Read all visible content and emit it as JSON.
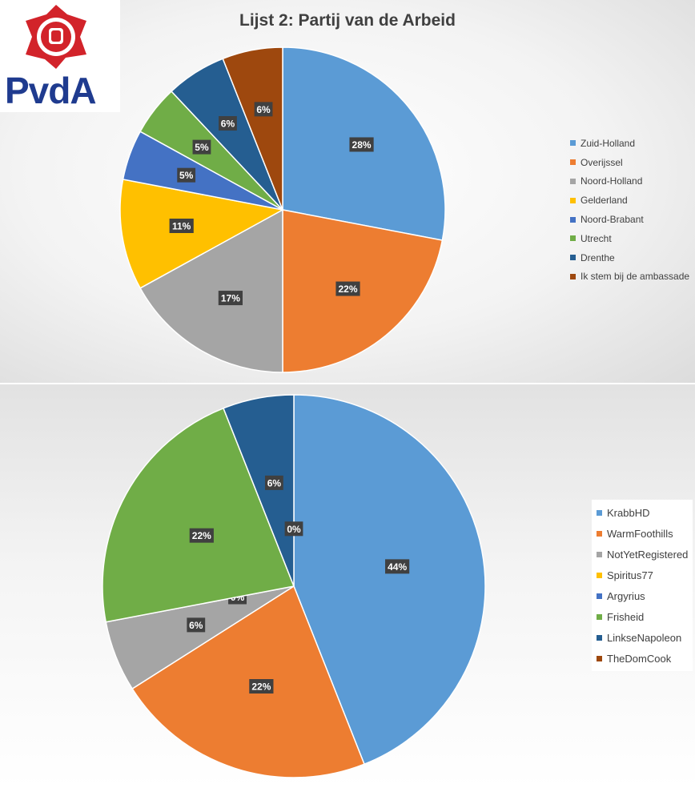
{
  "logo": {
    "text": "PvdA",
    "colors": {
      "rose": "#d2232a",
      "text": "#1f3b8f"
    }
  },
  "chart_data": [
    {
      "type": "pie",
      "title": "Lijst 2: Partij van de Arbeid",
      "categories": [
        "Zuid-Holland",
        "Overijssel",
        "Noord-Holland",
        "Gelderland",
        "Noord-Brabant",
        "Utrecht",
        "Drenthe",
        "Ik stem bij de ambassade"
      ],
      "values": [
        28,
        22,
        17,
        11,
        5,
        5,
        6,
        6
      ],
      "labels": [
        "28%",
        "22%",
        "17%",
        "11%",
        "5%",
        "5%",
        "6%",
        "6%"
      ],
      "colors": [
        "#5b9bd5",
        "#ed7d31",
        "#a5a5a5",
        "#ffc000",
        "#4472c4",
        "#70ad47",
        "#255e91",
        "#9e480e"
      ],
      "legend_position": "right"
    },
    {
      "type": "pie",
      "title": "",
      "categories": [
        "KrabbHD",
        "WarmFoothills",
        "NotYetRegistered",
        "Spiritus77",
        "Argyrius",
        "Frisheid",
        "LinkseNapoleon",
        "TheDomCook"
      ],
      "values": [
        44,
        22,
        6,
        0,
        0,
        22,
        6,
        0
      ],
      "labels": [
        "44%",
        "22%",
        "6%",
        "0%",
        "0%",
        "22%",
        "6%",
        "0%"
      ],
      "colors": [
        "#5b9bd5",
        "#ed7d31",
        "#a5a5a5",
        "#ffc000",
        "#4472c4",
        "#70ad47",
        "#255e91",
        "#9e480e"
      ],
      "legend_position": "right"
    }
  ]
}
